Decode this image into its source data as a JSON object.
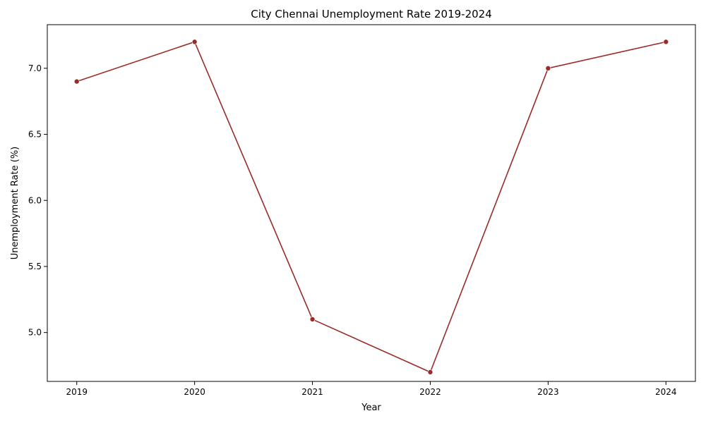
{
  "chart_data": {
    "type": "line",
    "title": "City Chennai Unemployment Rate 2019-2024",
    "xlabel": "Year",
    "ylabel": "Unemployment Rate (%)",
    "x": [
      2019,
      2020,
      2021,
      2022,
      2023,
      2024
    ],
    "series": [
      {
        "values": [
          6.9,
          7.2,
          5.1,
          4.7,
          7.0,
          7.2
        ]
      }
    ],
    "xlim": [
      2018.75,
      2024.25
    ],
    "ylim": [
      4.63,
      7.33
    ],
    "yticks": [
      5.0,
      5.5,
      6.0,
      6.5,
      7.0
    ],
    "yticks_labels": [
      "5.0",
      "5.5",
      "6.0",
      "6.5",
      "7.0"
    ],
    "xticks_labels": [
      "2019",
      "2020",
      "2021",
      "2022",
      "2023",
      "2024"
    ],
    "grid": false,
    "line_color": "#9b2a2a",
    "marker": "circle"
  }
}
